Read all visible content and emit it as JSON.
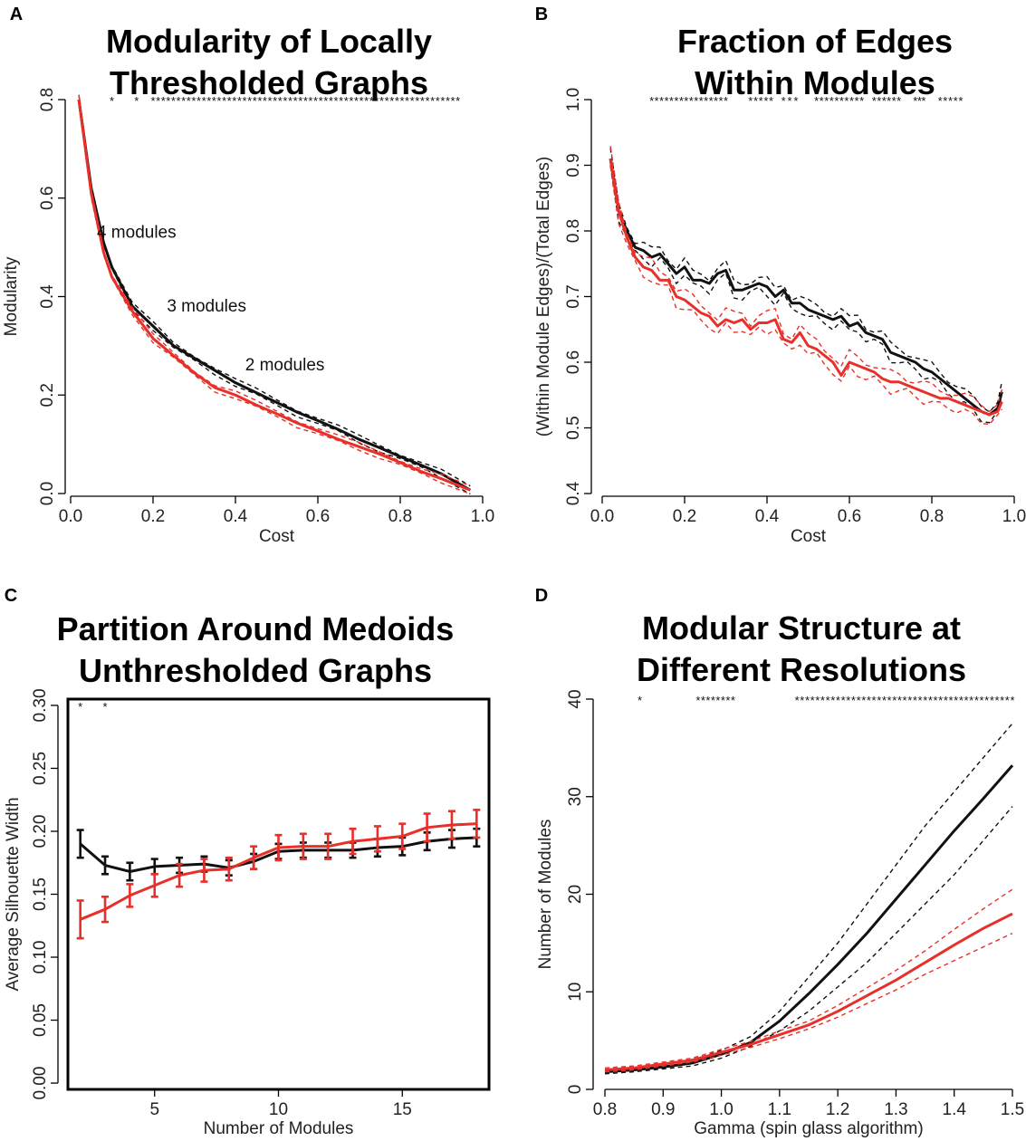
{
  "colors": {
    "black_series": "#111111",
    "red_series": "#e8302a"
  },
  "chart_data": [
    {
      "panel": "A",
      "type": "line",
      "title_lines": [
        "Modularity of Locally",
        "Thresholded Graphs"
      ],
      "xlabel": "Cost",
      "ylabel": "Modularity",
      "xlim": [
        0.0,
        1.0
      ],
      "ylim": [
        0.0,
        0.8
      ],
      "xticks": [
        "0.0",
        "0.2",
        "0.4",
        "0.6",
        "0.8",
        "1.0"
      ],
      "yticks": [
        "0.0",
        "0.2",
        "0.4",
        "0.6",
        "0.8"
      ],
      "x": [
        0.02,
        0.05,
        0.08,
        0.1,
        0.15,
        0.2,
        0.25,
        0.3,
        0.35,
        0.4,
        0.45,
        0.5,
        0.55,
        0.6,
        0.65,
        0.7,
        0.75,
        0.8,
        0.85,
        0.9,
        0.97
      ],
      "series": [
        {
          "name": "black",
          "color": "#111111",
          "values": [
            0.8,
            0.62,
            0.51,
            0.46,
            0.38,
            0.34,
            0.3,
            0.275,
            0.25,
            0.225,
            0.205,
            0.185,
            0.165,
            0.148,
            0.13,
            0.11,
            0.093,
            0.075,
            0.058,
            0.04,
            0.007
          ],
          "band": 0.006
        },
        {
          "name": "red",
          "color": "#e8302a",
          "values": [
            0.8,
            0.61,
            0.49,
            0.44,
            0.37,
            0.315,
            0.28,
            0.245,
            0.215,
            0.2,
            0.18,
            0.162,
            0.143,
            0.127,
            0.11,
            0.095,
            0.08,
            0.063,
            0.045,
            0.03,
            0.007
          ],
          "band": 0.006
        }
      ],
      "star_ranges": [
        [
          0.1,
          0.1
        ],
        [
          0.16,
          0.16
        ],
        [
          0.2,
          0.94
        ]
      ],
      "star_y": 0.8,
      "annotations": [
        {
          "text": "4 modules",
          "x": 0.16,
          "y": 0.52
        },
        {
          "text": "3 modules",
          "x": 0.33,
          "y": 0.37
        },
        {
          "text": "2 modules",
          "x": 0.52,
          "y": 0.25
        }
      ]
    },
    {
      "panel": "B",
      "type": "line",
      "title_lines": [
        "Fraction of Edges",
        "Within Modules"
      ],
      "xlabel": "Cost",
      "ylabel": "(Within Module Edges)/(Total Edges)",
      "xlim": [
        0.0,
        1.0
      ],
      "ylim": [
        0.4,
        1.0
      ],
      "xticks": [
        "0.0",
        "0.2",
        "0.4",
        "0.6",
        "0.8",
        "1.0"
      ],
      "yticks": [
        "0.4",
        "0.5",
        "0.6",
        "0.7",
        "0.8",
        "0.9",
        "1.0"
      ],
      "x": [
        0.02,
        0.04,
        0.06,
        0.08,
        0.1,
        0.12,
        0.14,
        0.16,
        0.18,
        0.2,
        0.22,
        0.24,
        0.26,
        0.28,
        0.3,
        0.32,
        0.34,
        0.36,
        0.38,
        0.4,
        0.42,
        0.44,
        0.46,
        0.48,
        0.5,
        0.52,
        0.54,
        0.56,
        0.58,
        0.6,
        0.62,
        0.64,
        0.66,
        0.68,
        0.7,
        0.72,
        0.74,
        0.76,
        0.78,
        0.8,
        0.82,
        0.84,
        0.86,
        0.88,
        0.9,
        0.92,
        0.94,
        0.96,
        0.97
      ],
      "series": [
        {
          "name": "black",
          "color": "#111111",
          "values": [
            0.91,
            0.83,
            0.8,
            0.775,
            0.77,
            0.76,
            0.765,
            0.75,
            0.735,
            0.745,
            0.725,
            0.725,
            0.72,
            0.735,
            0.74,
            0.71,
            0.71,
            0.715,
            0.72,
            0.715,
            0.7,
            0.71,
            0.69,
            0.69,
            0.68,
            0.675,
            0.67,
            0.665,
            0.67,
            0.655,
            0.66,
            0.645,
            0.64,
            0.635,
            0.615,
            0.61,
            0.605,
            0.6,
            0.59,
            0.585,
            0.575,
            0.565,
            0.555,
            0.545,
            0.535,
            0.525,
            0.52,
            0.53,
            0.555
          ],
          "band": 0.01
        },
        {
          "name": "red",
          "color": "#e8302a",
          "values": [
            0.91,
            0.83,
            0.79,
            0.76,
            0.745,
            0.74,
            0.725,
            0.725,
            0.7,
            0.695,
            0.685,
            0.675,
            0.67,
            0.655,
            0.665,
            0.66,
            0.665,
            0.65,
            0.66,
            0.66,
            0.665,
            0.635,
            0.63,
            0.645,
            0.625,
            0.62,
            0.61,
            0.6,
            0.58,
            0.6,
            0.595,
            0.59,
            0.585,
            0.575,
            0.57,
            0.57,
            0.565,
            0.56,
            0.555,
            0.55,
            0.545,
            0.545,
            0.54,
            0.535,
            0.53,
            0.525,
            0.52,
            0.525,
            0.54
          ],
          "band": 0.012
        }
      ],
      "star_ranges": [
        [
          0.12,
          0.3
        ],
        [
          0.36,
          0.41
        ],
        [
          0.44,
          0.47
        ],
        [
          0.52,
          0.63
        ],
        [
          0.66,
          0.72
        ],
        [
          0.76,
          0.78
        ],
        [
          0.82,
          0.87
        ]
      ],
      "star_y": 1.0
    },
    {
      "panel": "C",
      "type": "line",
      "title_lines": [
        "Partition Around Medoids",
        "Unthresholded Graphs"
      ],
      "xlabel": "Number of Modules",
      "ylabel": "Average Silhouette Width",
      "xlim": [
        1.5,
        18.5
      ],
      "ylim": [
        -0.005,
        0.305
      ],
      "xticks": [
        "5",
        "10",
        "15"
      ],
      "xtick_values": [
        5,
        10,
        15
      ],
      "yticks": [
        "0.00",
        "0.05",
        "0.10",
        "0.15",
        "0.20",
        "0.25",
        "0.30"
      ],
      "x": [
        2,
        3,
        4,
        5,
        6,
        7,
        8,
        9,
        10,
        11,
        12,
        13,
        14,
        15,
        16,
        17,
        18
      ],
      "series": [
        {
          "name": "black",
          "color": "#111111",
          "values": [
            0.19,
            0.173,
            0.168,
            0.172,
            0.173,
            0.174,
            0.171,
            0.176,
            0.184,
            0.185,
            0.185,
            0.185,
            0.187,
            0.188,
            0.192,
            0.194,
            0.195
          ],
          "errors": [
            0.011,
            0.007,
            0.007,
            0.006,
            0.006,
            0.006,
            0.006,
            0.006,
            0.006,
            0.006,
            0.006,
            0.006,
            0.007,
            0.007,
            0.007,
            0.007,
            0.007
          ]
        },
        {
          "name": "red",
          "color": "#e8302a",
          "values": [
            0.13,
            0.138,
            0.149,
            0.157,
            0.165,
            0.169,
            0.17,
            0.179,
            0.187,
            0.188,
            0.188,
            0.192,
            0.194,
            0.196,
            0.203,
            0.205,
            0.206
          ],
          "errors": [
            0.015,
            0.01,
            0.009,
            0.009,
            0.009,
            0.009,
            0.009,
            0.009,
            0.01,
            0.01,
            0.01,
            0.01,
            0.01,
            0.01,
            0.011,
            0.011,
            0.011
          ]
        }
      ],
      "star_ranges": [
        [
          2,
          2
        ],
        [
          3,
          3
        ]
      ],
      "star_y": 0.3
    },
    {
      "panel": "D",
      "type": "line",
      "title_lines": [
        "Modular Structure at",
        "Different Resolutions"
      ],
      "xlabel": "Gamma (spin glass algorithm)",
      "ylabel": "Number of Modules",
      "xlim": [
        0.8,
        1.5
      ],
      "ylim": [
        0,
        40
      ],
      "xticks": [
        "0.8",
        "0.9",
        "1.0",
        "1.1",
        "1.2",
        "1.3",
        "1.4",
        "1.5"
      ],
      "yticks": [
        "0",
        "10",
        "20",
        "30",
        "40"
      ],
      "x": [
        0.8,
        0.85,
        0.9,
        0.95,
        1.0,
        1.05,
        1.1,
        1.15,
        1.2,
        1.25,
        1.3,
        1.35,
        1.4,
        1.45,
        1.5
      ],
      "series": [
        {
          "name": "black",
          "color": "#111111",
          "values": [
            1.8,
            2.0,
            2.3,
            2.7,
            3.6,
            4.8,
            7.0,
            9.8,
            12.8,
            16.0,
            19.5,
            23.0,
            26.5,
            29.8,
            33.2
          ],
          "band_low": [
            1.6,
            1.8,
            2.1,
            2.4,
            3.2,
            4.4,
            6.0,
            8.0,
            10.5,
            13.0,
            16.0,
            19.0,
            22.0,
            25.5,
            29.0
          ],
          "band_high": [
            2.0,
            2.2,
            2.5,
            3.0,
            4.0,
            5.4,
            8.0,
            11.5,
            15.0,
            19.0,
            23.0,
            27.0,
            30.5,
            34.0,
            37.5
          ]
        },
        {
          "name": "red",
          "color": "#e8302a",
          "values": [
            2.0,
            2.2,
            2.6,
            3.0,
            3.8,
            4.6,
            5.6,
            6.6,
            8.0,
            9.6,
            11.2,
            13.0,
            14.8,
            16.5,
            18.0
          ],
          "band_low": [
            1.8,
            2.0,
            2.4,
            2.8,
            3.5,
            4.3,
            5.2,
            6.2,
            7.4,
            8.8,
            10.2,
            11.8,
            13.2,
            14.6,
            16.0
          ],
          "band_high": [
            2.2,
            2.4,
            2.8,
            3.2,
            4.1,
            4.9,
            6.0,
            7.0,
            8.6,
            10.4,
            12.2,
            14.2,
            16.4,
            18.5,
            20.5
          ]
        }
      ],
      "star_ranges": [
        [
          0.86,
          0.86
        ],
        [
          0.96,
          1.02
        ],
        [
          1.13,
          1.5
        ]
      ],
      "star_y": 40
    }
  ]
}
